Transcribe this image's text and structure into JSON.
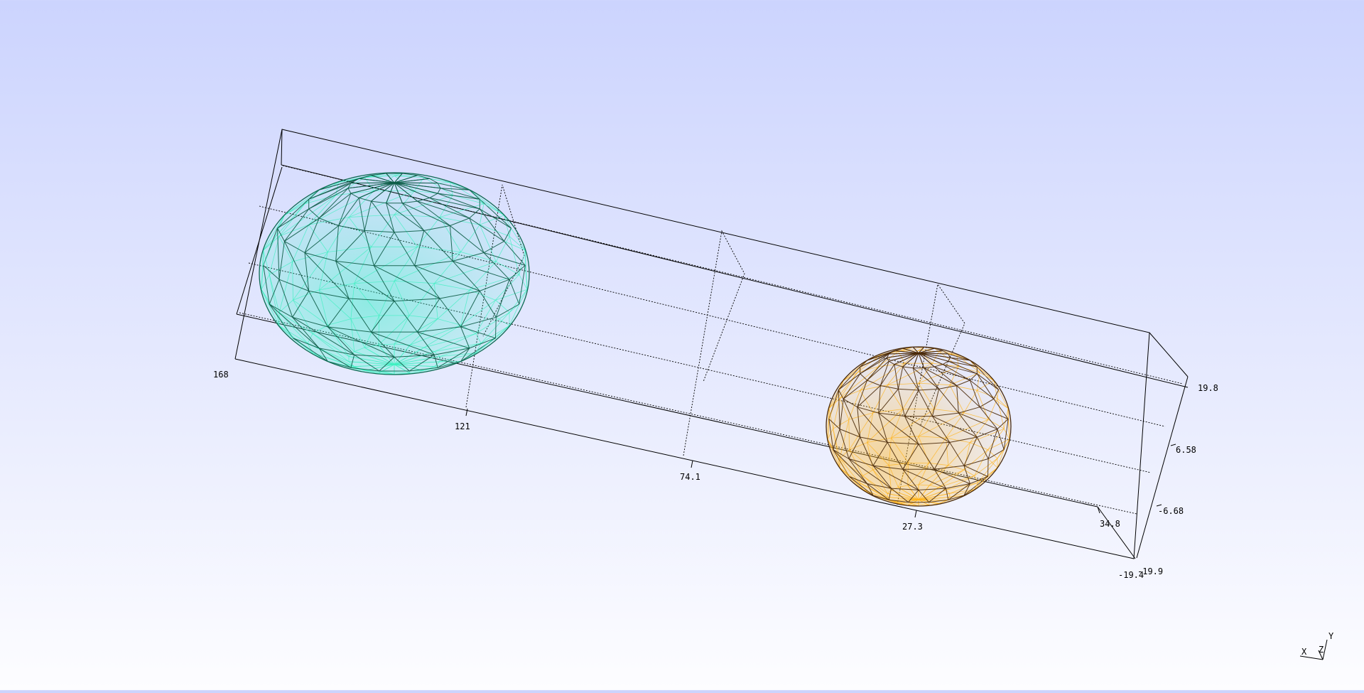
{
  "viewer": {
    "background_top": "#ccd4fe",
    "background_bottom": "#fdfdff",
    "render_mode": "wireframe"
  },
  "axes": {
    "x_ticks": [
      "168",
      "121",
      "74.1",
      "27.3"
    ],
    "x_end_label": "-19.4",
    "y_ticks": [
      "19.8",
      "6.58",
      "-6.68",
      "-19.9"
    ],
    "z_ticks": [
      "34.8"
    ],
    "triad": {
      "x": "X",
      "y": "Y",
      "z": "Z"
    }
  },
  "objects": [
    {
      "name": "teal-ellipsoid",
      "shade_color": "#3cf0c0",
      "edge_color": "#0d5c47"
    },
    {
      "name": "orange-sphere",
      "shade_color": "#ffb31a",
      "edge_color": "#4a2a0a"
    }
  ]
}
